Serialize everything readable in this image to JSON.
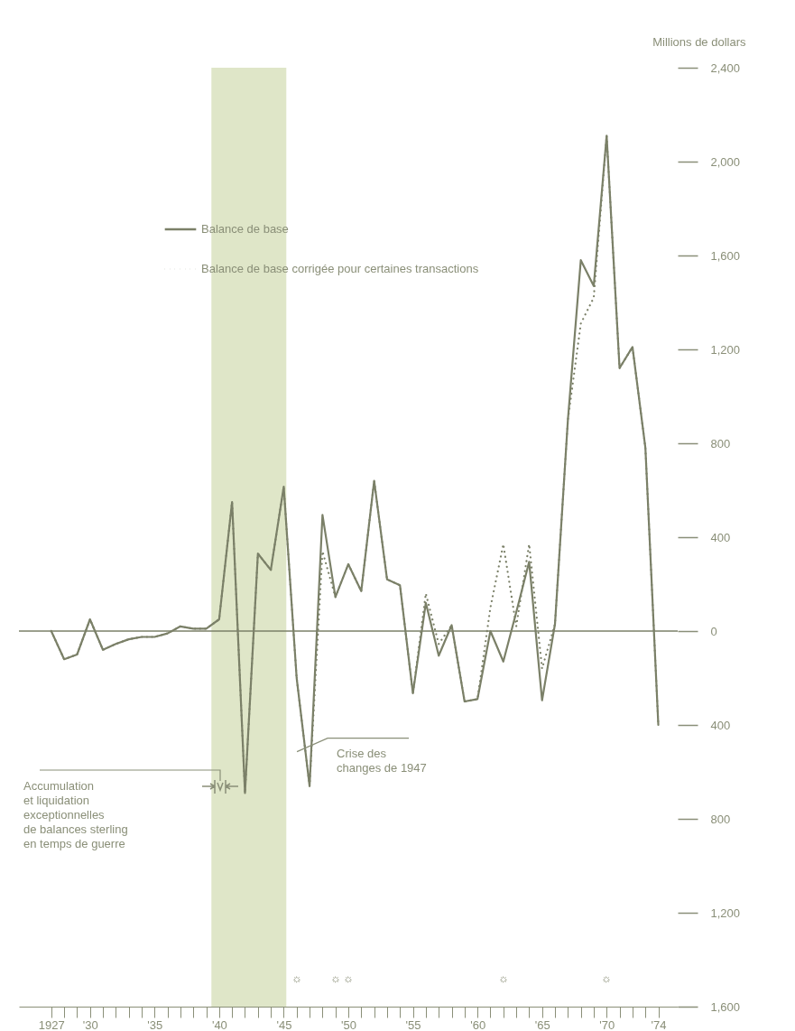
{
  "chart_data": {
    "type": "line",
    "ylabel": "Millions de dollars",
    "x": [
      1927,
      1928,
      1929,
      1930,
      1931,
      1932,
      1933,
      1934,
      1935,
      1936,
      1937,
      1938,
      1939,
      1940,
      1941,
      1942,
      1943,
      1944,
      1945,
      1946,
      1947,
      1948,
      1949,
      1950,
      1951,
      1952,
      1953,
      1954,
      1955,
      1956,
      1957,
      1958,
      1959,
      1960,
      1961,
      1962,
      1963,
      1964,
      1965,
      1966,
      1967,
      1968,
      1969,
      1970,
      1971,
      1972,
      1973,
      1974
    ],
    "series": [
      {
        "name": "Balance de base",
        "color": "#7b8068",
        "line_style": "solid",
        "values": [
          0,
          -120,
          -100,
          50,
          -80,
          -55,
          -35,
          -25,
          -25,
          -10,
          20,
          10,
          10,
          50,
          550,
          -690,
          330,
          260,
          615,
          -200,
          -660,
          495,
          145,
          285,
          170,
          640,
          220,
          195,
          -265,
          120,
          -105,
          25,
          -300,
          -290,
          0,
          -130,
          80,
          295,
          -295,
          30,
          900,
          1580,
          1470,
          2110,
          1120,
          1210,
          780,
          -400
        ]
      },
      {
        "name": "Balance de base corrigée pour certaines transactions",
        "color": "#7b8068",
        "line_style": "dotted",
        "values": [
          0,
          -120,
          -100,
          50,
          -80,
          -55,
          -35,
          -25,
          -25,
          -10,
          20,
          10,
          10,
          50,
          550,
          -690,
          330,
          260,
          615,
          -200,
          -660,
          340,
          145,
          285,
          170,
          640,
          220,
          195,
          -265,
          160,
          -55,
          25,
          -300,
          -290,
          100,
          370,
          20,
          370,
          -160,
          30,
          900,
          1310,
          1420,
          2110,
          1120,
          1210,
          780,
          -400
        ]
      }
    ],
    "xlim": [
      1924.5,
      1975.5
    ],
    "xticks": [
      {
        "value": 1927,
        "label": "1927"
      },
      {
        "value": 1928,
        "label": null
      },
      {
        "value": 1929,
        "label": null
      },
      {
        "value": 1930,
        "label": "'30"
      },
      {
        "value": 1931,
        "label": null
      },
      {
        "value": 1932,
        "label": null
      },
      {
        "value": 1933,
        "label": null
      },
      {
        "value": 1934,
        "label": null
      },
      {
        "value": 1935,
        "label": "'35"
      },
      {
        "value": 1936,
        "label": null
      },
      {
        "value": 1937,
        "label": null
      },
      {
        "value": 1938,
        "label": null
      },
      {
        "value": 1939,
        "label": null
      },
      {
        "value": 1940,
        "label": "'40"
      },
      {
        "value": 1941,
        "label": null
      },
      {
        "value": 1942,
        "label": null
      },
      {
        "value": 1943,
        "label": null
      },
      {
        "value": 1944,
        "label": null
      },
      {
        "value": 1945,
        "label": "'45"
      },
      {
        "value": 1946,
        "label": null
      },
      {
        "value": 1947,
        "label": null
      },
      {
        "value": 1948,
        "label": null
      },
      {
        "value": 1949,
        "label": null
      },
      {
        "value": 1950,
        "label": "'50"
      },
      {
        "value": 1951,
        "label": null
      },
      {
        "value": 1952,
        "label": null
      },
      {
        "value": 1953,
        "label": null
      },
      {
        "value": 1954,
        "label": null
      },
      {
        "value": 1955,
        "label": "'55"
      },
      {
        "value": 1956,
        "label": null
      },
      {
        "value": 1957,
        "label": null
      },
      {
        "value": 1958,
        "label": null
      },
      {
        "value": 1959,
        "label": null
      },
      {
        "value": 1960,
        "label": "'60"
      },
      {
        "value": 1961,
        "label": null
      },
      {
        "value": 1962,
        "label": null
      },
      {
        "value": 1963,
        "label": null
      },
      {
        "value": 1964,
        "label": null
      },
      {
        "value": 1965,
        "label": "'65"
      },
      {
        "value": 1966,
        "label": null
      },
      {
        "value": 1967,
        "label": null
      },
      {
        "value": 1968,
        "label": null
      },
      {
        "value": 1969,
        "label": null
      },
      {
        "value": 1970,
        "label": "'70"
      },
      {
        "value": 1971,
        "label": null
      },
      {
        "value": 1972,
        "label": null
      },
      {
        "value": 1973,
        "label": null
      },
      {
        "value": 1974,
        "label": "'74"
      }
    ],
    "ylim": [
      -1600,
      2400
    ],
    "yticks": [
      {
        "value": 2400,
        "label": "2,400"
      },
      {
        "value": 2000,
        "label": "2,000"
      },
      {
        "value": 1600,
        "label": "1,600"
      },
      {
        "value": 1200,
        "label": "1,200"
      },
      {
        "value": 800,
        "label": "800"
      },
      {
        "value": 400,
        "label": "400"
      },
      {
        "value": 0,
        "label": "0"
      },
      {
        "value": -400,
        "label": "400"
      },
      {
        "value": -800,
        "label": "800"
      },
      {
        "value": -1200,
        "label": "1,200"
      },
      {
        "value": -1600,
        "label": "1,600"
      }
    ],
    "ref_lines": [
      {
        "axis": "y",
        "value": 0,
        "color": "#7b8068",
        "line_style": "solid"
      }
    ],
    "bands": [
      {
        "axis": "x",
        "from": 1939.4,
        "to": 1945.2,
        "color": "#dfe6c8"
      }
    ],
    "annotations": [
      "Accumulation\net liquidation\nexceptionnelles\nde balances sterling\nen temps de guerre",
      {
        "text": "Crise des\nchanges de 1947",
        "x": 1947,
        "y": -660
      },
      "☼",
      "☼",
      "☼",
      "☼",
      "☼"
    ],
    "legend": "top left",
    "grid": false,
    "marker": "none"
  }
}
